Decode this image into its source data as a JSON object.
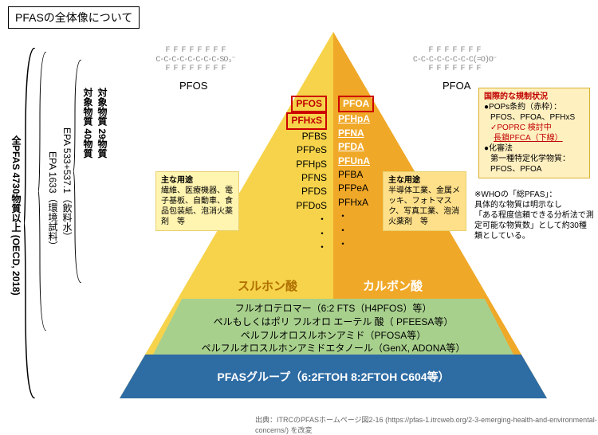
{
  "title": "PFASの全体像について",
  "left_axis": {
    "main": "全PFAS 4730物質以上 (OECD, 2018)",
    "epa1": "EPA 1633（環境試料）",
    "epa2": "EPA 533+537.1（飲料水）",
    "target40": "対象物質 40物質",
    "target29": "対象物質 29物質"
  },
  "chem_labels": {
    "pfos": "PFOS",
    "pfoa": "PFOA"
  },
  "chem_struct": {
    "pfos_top": "F F F F F F F F",
    "pfos_mid": "C-C-C-C-C-C-C-C-SO₃⁻",
    "pfos_bot": "F F F F F F F F",
    "pfoa_top": "F F F F F F F",
    "pfoa_mid": "C-C-C-C-C-C-C-C(=O)O⁻",
    "pfoa_bot": "F F F F F F F"
  },
  "pyr": {
    "left_cat": "スルホン酸",
    "right_cat": "カルボン酸",
    "left_list": [
      "PFOS",
      "PFHxS",
      "PFBS",
      "PFPeS",
      "PFHpS",
      "PFNS",
      "PFDS",
      "PFDoS",
      "・",
      "・",
      "・"
    ],
    "right_list": [
      "PFOA",
      "PFHpA",
      "PFNA",
      "PFDA",
      "PFUnA",
      "PFBA",
      "PFPeA",
      "PFHxA",
      "・",
      "・",
      "・"
    ],
    "left_boxed": [
      0,
      1
    ],
    "right_white_bold": [
      0,
      1,
      2,
      3,
      4
    ],
    "right_underline": [
      0,
      1,
      2,
      3,
      4
    ]
  },
  "callouts": {
    "left_use_title": "主な用途",
    "left_use_body": "繊維、医療機器、電子基板、自動車、食品包装紙、泡消火薬剤　等",
    "right_use_title": "主な用途",
    "right_use_body": "半導体工業、金属メッキ、フォトマスク、写真工業、泡消火薬剤　等",
    "reg_title": "国際的な規制状況",
    "reg_l1": "●POPs条約（赤枠）：",
    "reg_l2": "PFOS、PFOA、PFHxS",
    "reg_l3": "✓POPRC 検討中",
    "reg_l4": "長鎖PFCA（下線）",
    "reg_l5": "●化審法",
    "reg_l6": "第一種特定化学物質：",
    "reg_l7": "PFOS、PFOA"
  },
  "who_note": "※WHOの「総PFAS」：\n具体的な物質は明示なし\n「ある程度信頼できる分析法で測定可能な物質数」として約30種類としている。",
  "mid_band": {
    "l1": "フルオロテロマー（6:2 FTS（H4PFOS）等）",
    "l2": "ペルもしくはポリ フルオロ エーテル 酸（ PFEESA等）",
    "l3": "ペルフルオロスルホンアミド（PFOSA等）",
    "l4": "ペルフルオロスルホンアミドエタノール（GenX, ADONA等）"
  },
  "bot_band": "PFASグループ（6:2FTOH 8:2FTOH C604等）",
  "source": "出典：ITRCのPFASホームページ図2-16 (https://pfas-1.itrcweb.org/2-3-emerging-health-and-environmental-concerns/) を改変",
  "colors": {
    "tri_left": "#f6d34a",
    "tri_right": "#f0a828",
    "mid": "#a8d08d",
    "bot": "#2e6ca4",
    "red": "#c00000"
  }
}
